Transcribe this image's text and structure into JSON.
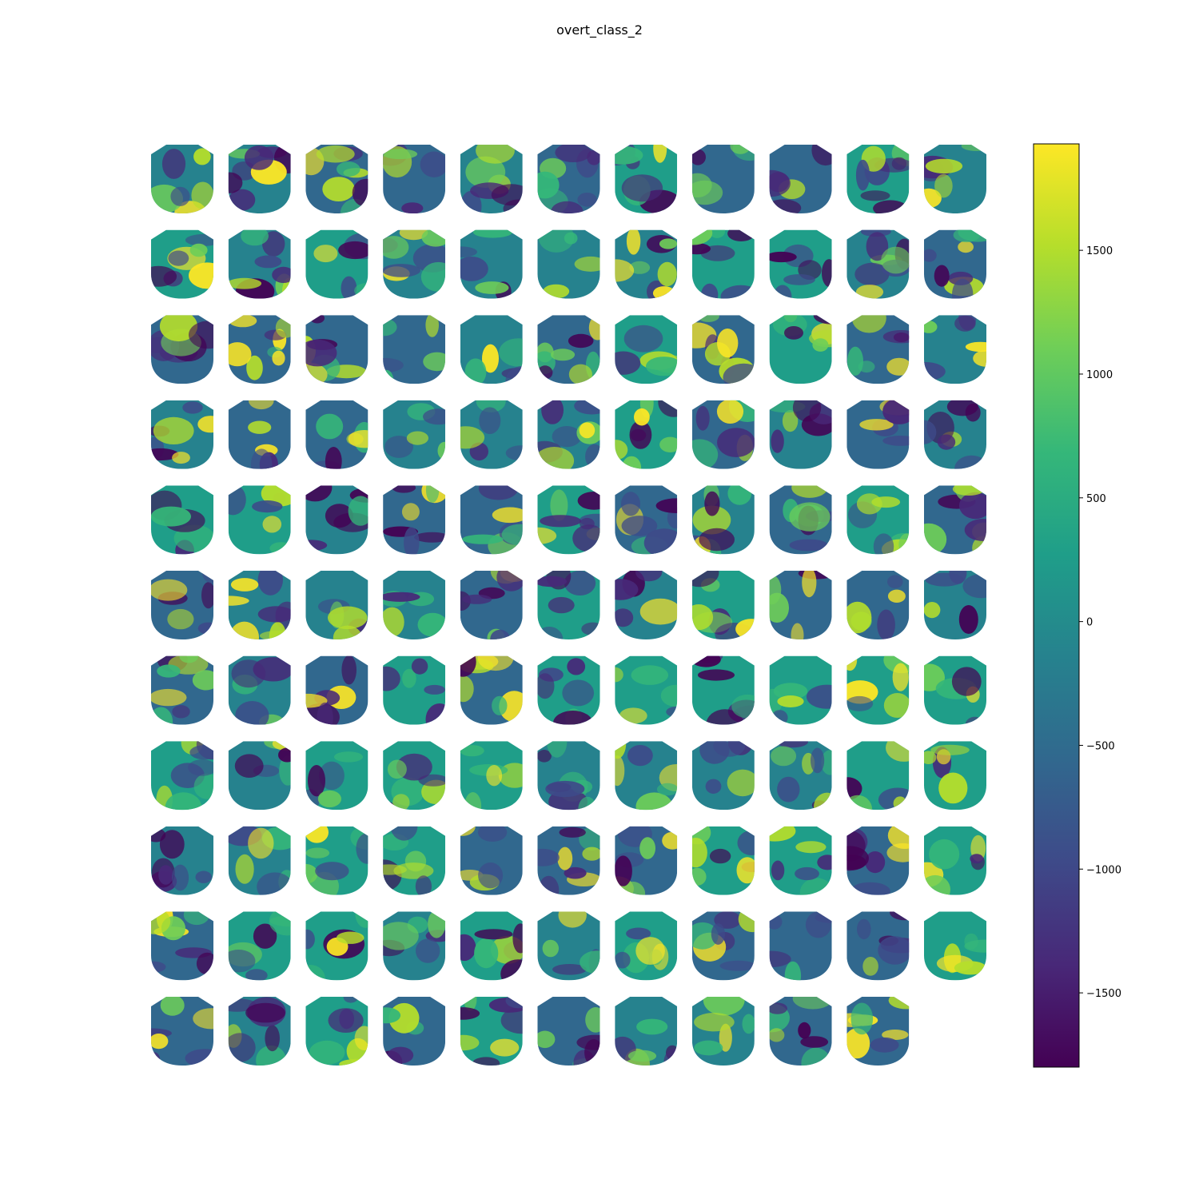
{
  "chart_data": {
    "type": "heatmap",
    "title": "overt_class_2",
    "subplot_count": 120,
    "grid": {
      "rows": 11,
      "cols": 11
    },
    "row_counts": [
      11,
      11,
      11,
      11,
      11,
      11,
      11,
      11,
      11,
      11,
      10
    ],
    "colormap": "viridis",
    "colorbar": {
      "vmin": -1800,
      "vmax": 1930,
      "ticks": [
        -1500,
        -1000,
        -500,
        0,
        500,
        1000,
        1500
      ],
      "tick_labels": [
        "−1500",
        "−1000",
        "−500",
        "0",
        "500",
        "1000",
        "1500"
      ]
    },
    "colors": {
      "viridis_low": "#440154",
      "viridis_mid": "#21918c",
      "viridis_high": "#fde725"
    }
  }
}
